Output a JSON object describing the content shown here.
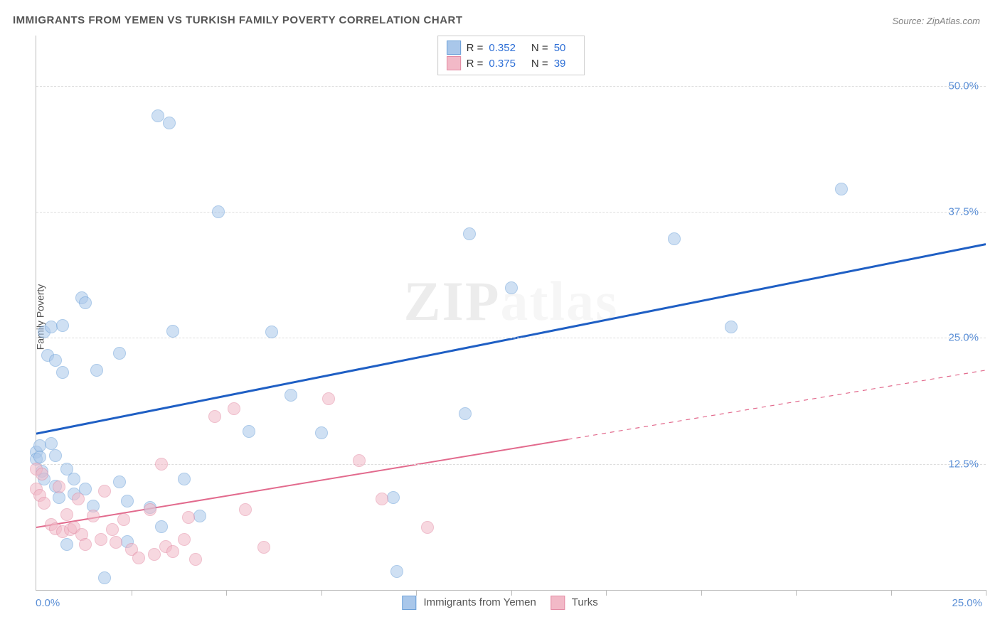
{
  "title": "IMMIGRANTS FROM YEMEN VS TURKISH FAMILY POVERTY CORRELATION CHART",
  "source": "Source: ZipAtlas.com",
  "watermark": "ZIPatlas",
  "chart": {
    "type": "scatter",
    "ylabel": "Family Poverty",
    "xlim": [
      0,
      25
    ],
    "ylim": [
      0,
      55
    ],
    "xticks_minor": [
      2.5,
      5,
      7.5,
      10,
      12.5,
      15,
      17.5,
      20,
      22.5,
      25
    ],
    "yticks": [
      12.5,
      25,
      37.5,
      50
    ],
    "ytick_labels": [
      "12.5%",
      "25.0%",
      "37.5%",
      "50.0%"
    ],
    "x_min_label": "0.0%",
    "x_max_label": "25.0%",
    "background_color": "#ffffff",
    "grid_color": "#dddddd",
    "axis_color": "#bbbbbb",
    "tick_label_color": "#5b8fd6",
    "series": [
      {
        "name": "Immigrants from Yemen",
        "color_fill": "#a9c7ea",
        "color_stroke": "#6a9fd8",
        "fill_opacity": 0.55,
        "marker_radius": 8,
        "trend": {
          "y_at_x0": 15.5,
          "y_at_xmax": 34.3,
          "solid_until_x": 25,
          "color": "#1f5fc4",
          "width": 3
        },
        "legend_stats": {
          "R": "0.352",
          "N": "50"
        },
        "points": [
          [
            0.0,
            13.7
          ],
          [
            0.0,
            13.0
          ],
          [
            0.1,
            14.3
          ],
          [
            0.1,
            13.2
          ],
          [
            0.15,
            11.8
          ],
          [
            0.2,
            25.6
          ],
          [
            0.2,
            11.0
          ],
          [
            0.3,
            23.3
          ],
          [
            0.4,
            14.5
          ],
          [
            0.4,
            26.1
          ],
          [
            0.5,
            22.8
          ],
          [
            0.5,
            13.3
          ],
          [
            0.5,
            10.3
          ],
          [
            0.6,
            9.2
          ],
          [
            0.7,
            26.2
          ],
          [
            0.7,
            21.6
          ],
          [
            0.8,
            12.0
          ],
          [
            0.8,
            4.5
          ],
          [
            1.0,
            9.5
          ],
          [
            1.0,
            11.0
          ],
          [
            1.2,
            29.0
          ],
          [
            1.3,
            10.0
          ],
          [
            1.3,
            28.5
          ],
          [
            1.5,
            8.3
          ],
          [
            1.6,
            21.8
          ],
          [
            1.8,
            1.2
          ],
          [
            2.2,
            23.5
          ],
          [
            2.2,
            10.7
          ],
          [
            2.4,
            8.8
          ],
          [
            2.4,
            4.8
          ],
          [
            3.0,
            8.2
          ],
          [
            3.2,
            47.0
          ],
          [
            3.3,
            6.3
          ],
          [
            3.5,
            46.3
          ],
          [
            3.6,
            25.7
          ],
          [
            3.9,
            11.0
          ],
          [
            4.3,
            7.3
          ],
          [
            4.8,
            37.5
          ],
          [
            5.6,
            15.7
          ],
          [
            6.2,
            25.6
          ],
          [
            6.7,
            19.3
          ],
          [
            7.5,
            15.6
          ],
          [
            9.4,
            9.2
          ],
          [
            9.5,
            1.8
          ],
          [
            11.3,
            17.5
          ],
          [
            11.4,
            35.3
          ],
          [
            12.5,
            30.0
          ],
          [
            16.8,
            34.8
          ],
          [
            18.3,
            26.1
          ],
          [
            21.2,
            39.8
          ]
        ]
      },
      {
        "name": "Turks",
        "color_fill": "#f2b9c7",
        "color_stroke": "#e38aa3",
        "fill_opacity": 0.55,
        "marker_radius": 8,
        "trend": {
          "y_at_x0": 6.2,
          "y_at_xmax": 21.8,
          "solid_until_x": 14,
          "color": "#e26a8d",
          "width": 2
        },
        "legend_stats": {
          "R": "0.375",
          "N": "39"
        },
        "points": [
          [
            0.0,
            10.0
          ],
          [
            0.0,
            12.0
          ],
          [
            0.1,
            9.4
          ],
          [
            0.15,
            11.5
          ],
          [
            0.2,
            8.6
          ],
          [
            0.4,
            6.5
          ],
          [
            0.5,
            6.1
          ],
          [
            0.6,
            10.2
          ],
          [
            0.7,
            5.8
          ],
          [
            0.8,
            7.5
          ],
          [
            0.9,
            6.0
          ],
          [
            1.0,
            6.2
          ],
          [
            1.1,
            9.0
          ],
          [
            1.2,
            5.5
          ],
          [
            1.3,
            4.5
          ],
          [
            1.5,
            7.3
          ],
          [
            1.7,
            5.0
          ],
          [
            1.8,
            9.8
          ],
          [
            2.0,
            6.0
          ],
          [
            2.1,
            4.7
          ],
          [
            2.3,
            7.0
          ],
          [
            2.5,
            4.0
          ],
          [
            2.7,
            3.2
          ],
          [
            3.0,
            8.0
          ],
          [
            3.1,
            3.5
          ],
          [
            3.3,
            12.5
          ],
          [
            3.4,
            4.3
          ],
          [
            3.6,
            3.8
          ],
          [
            3.9,
            5.0
          ],
          [
            4.0,
            7.2
          ],
          [
            4.2,
            3.0
          ],
          [
            4.7,
            17.2
          ],
          [
            5.2,
            18.0
          ],
          [
            5.5,
            8.0
          ],
          [
            6.0,
            4.2
          ],
          [
            7.7,
            19.0
          ],
          [
            8.5,
            12.8
          ],
          [
            9.1,
            9.0
          ],
          [
            10.3,
            6.2
          ]
        ]
      }
    ]
  },
  "legend_top_labels": {
    "R_prefix": "R =",
    "N_prefix": "N ="
  },
  "legend_bottom": [
    {
      "label": "Immigrants from Yemen",
      "fill": "#a9c7ea",
      "stroke": "#6a9fd8"
    },
    {
      "label": "Turks",
      "fill": "#f2b9c7",
      "stroke": "#e38aa3"
    }
  ]
}
